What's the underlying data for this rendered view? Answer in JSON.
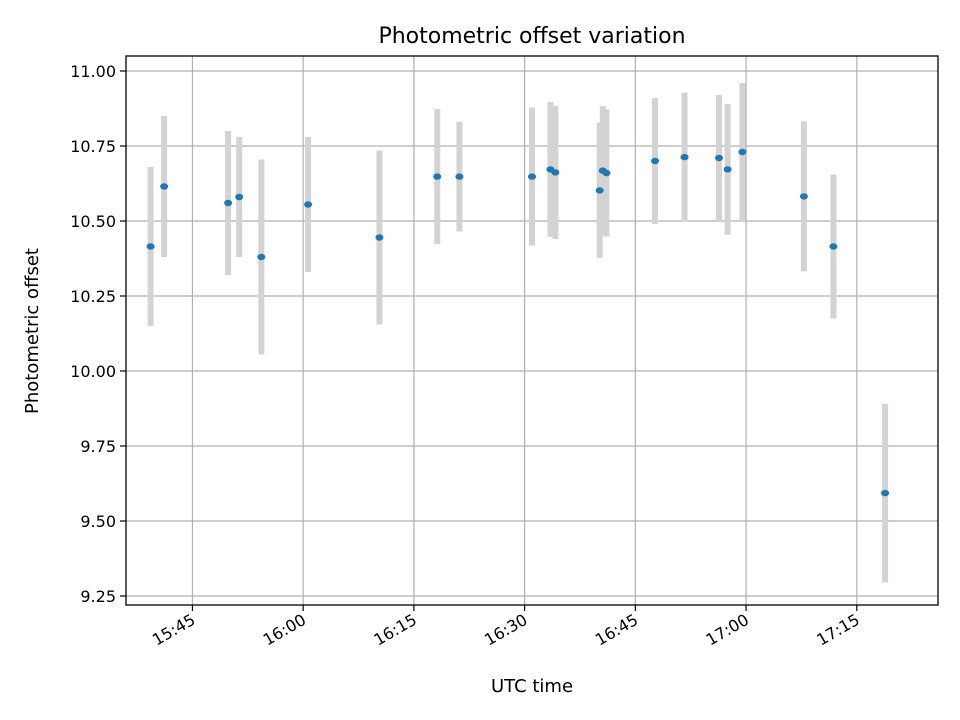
{
  "chart_data": {
    "type": "scatter",
    "title": "Photometric offset variation",
    "xlabel": "UTC time",
    "ylabel": "Photometric offset",
    "xlim": [
      "15:36",
      "17:26"
    ],
    "ylim": [
      9.22,
      11.05
    ],
    "xticks": [
      "15:45",
      "16:00",
      "16:15",
      "16:30",
      "16:45",
      "17:00",
      "17:15"
    ],
    "yticks": [
      9.25,
      9.5,
      9.75,
      10.0,
      10.25,
      10.5,
      10.75,
      11.0
    ],
    "ytick_labels": [
      "9.25",
      "9.50",
      "9.75",
      "10.00",
      "10.25",
      "10.50",
      "10.75",
      "11.00"
    ],
    "grid": true,
    "colors": {
      "points": "#1f77b4",
      "errorbars": "#d3d3d3",
      "grid": "#b0b0b0"
    },
    "series": [
      {
        "points": [
          {
            "x": "15:39:20",
            "y": 10.415,
            "err": 0.265
          },
          {
            "x": "15:41:10",
            "y": 10.615,
            "err": 0.235
          },
          {
            "x": "15:49:50",
            "y": 10.56,
            "err": 0.24
          },
          {
            "x": "15:51:20",
            "y": 10.58,
            "err": 0.2
          },
          {
            "x": "15:54:20",
            "y": 10.38,
            "err": 0.325
          },
          {
            "x": "16:00:40",
            "y": 10.555,
            "err": 0.225
          },
          {
            "x": "16:10:20",
            "y": 10.445,
            "err": 0.29
          },
          {
            "x": "16:18:10",
            "y": 10.648,
            "err": 0.225
          },
          {
            "x": "16:21:10",
            "y": 10.648,
            "err": 0.183
          },
          {
            "x": "16:31:00",
            "y": 10.648,
            "err": 0.23
          },
          {
            "x": "16:33:30",
            "y": 10.672,
            "err": 0.225
          },
          {
            "x": "16:34:10",
            "y": 10.662,
            "err": 0.222
          },
          {
            "x": "16:40:10",
            "y": 10.602,
            "err": 0.225
          },
          {
            "x": "16:40:35",
            "y": 10.668,
            "err": 0.215
          },
          {
            "x": "16:41:05",
            "y": 10.66,
            "err": 0.212
          },
          {
            "x": "16:47:40",
            "y": 10.7,
            "err": 0.21
          },
          {
            "x": "16:51:40",
            "y": 10.713,
            "err": 0.215
          },
          {
            "x": "16:56:20",
            "y": 10.71,
            "err": 0.21
          },
          {
            "x": "16:57:30",
            "y": 10.672,
            "err": 0.218
          },
          {
            "x": "16:59:30",
            "y": 10.73,
            "err": 0.23
          },
          {
            "x": "17:07:50",
            "y": 10.582,
            "err": 0.25
          },
          {
            "x": "17:11:50",
            "y": 10.415,
            "err": 0.24
          },
          {
            "x": "17:18:50",
            "y": 9.593,
            "err": 0.298
          }
        ]
      }
    ]
  }
}
